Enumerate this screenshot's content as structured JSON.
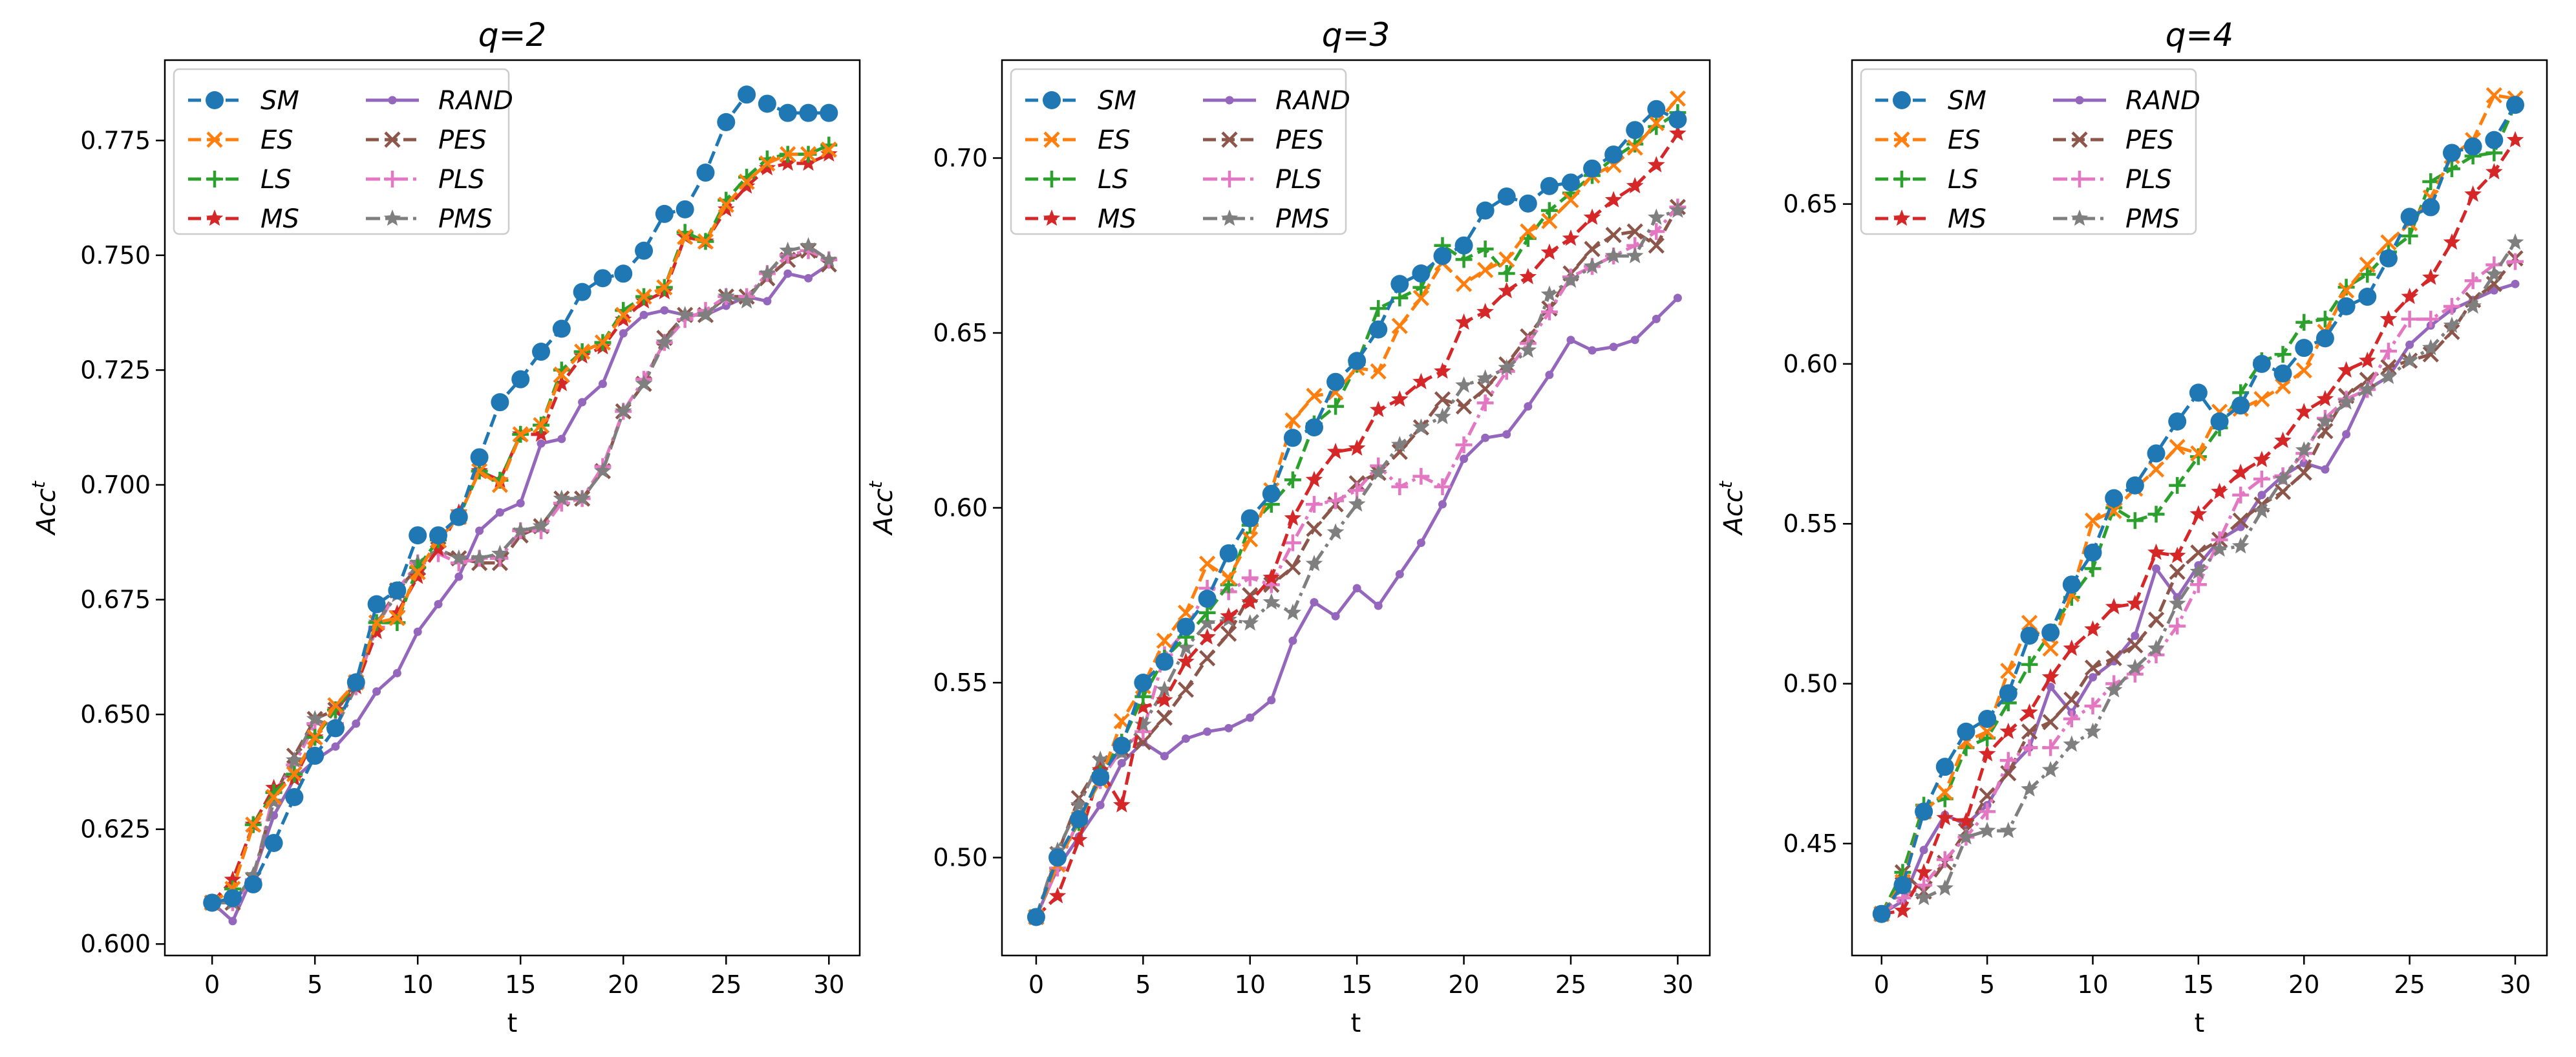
{
  "colors": {
    "SM": "#1f77b4",
    "ES": "#ff7f0e",
    "LS": "#2ca02c",
    "MS": "#d62728",
    "RAND": "#9467bd",
    "PES": "#8c564b",
    "PLS": "#e377c2",
    "PMS": "#7f7f7f"
  },
  "legend_order": [
    "SM",
    "ES",
    "LS",
    "MS",
    "RAND",
    "PES",
    "PLS",
    "PMS"
  ],
  "series_style": {
    "SM": {
      "marker": "circle",
      "dash": "dashed"
    },
    "ES": {
      "marker": "x",
      "dash": "dashed"
    },
    "LS": {
      "marker": "plus",
      "dash": "dashed"
    },
    "MS": {
      "marker": "star",
      "dash": "dashed"
    },
    "RAND": {
      "marker": "dot",
      "dash": "solid"
    },
    "PES": {
      "marker": "x",
      "dash": "dashed"
    },
    "PLS": {
      "marker": "plus",
      "dash": "dashdot"
    },
    "PMS": {
      "marker": "star",
      "dash": "dashdot"
    }
  },
  "chart_data": [
    {
      "type": "line",
      "title": "q=2",
      "xlabel": "t",
      "ylabel": "Acc",
      "ylabel_sup": "t",
      "xlim": [
        -2.3,
        31.5
      ],
      "ylim": [
        0.5975,
        0.7925
      ],
      "xticks": [
        0,
        5,
        10,
        15,
        20,
        25,
        30
      ],
      "yticks": [
        0.6,
        0.625,
        0.65,
        0.675,
        0.7,
        0.725,
        0.75,
        0.775
      ],
      "ytick_labels": [
        "0.600",
        "0.625",
        "0.650",
        "0.675",
        "0.700",
        "0.725",
        "0.750",
        "0.775"
      ],
      "legend_position": "top-left",
      "x": [
        0,
        1,
        2,
        3,
        4,
        5,
        6,
        7,
        8,
        9,
        10,
        11,
        12,
        13,
        14,
        15,
        16,
        17,
        18,
        19,
        20,
        21,
        22,
        23,
        24,
        25,
        26,
        27,
        28,
        29,
        30
      ],
      "series": [
        {
          "name": "SM",
          "values": [
            0.609,
            0.61,
            0.613,
            0.622,
            0.632,
            0.641,
            0.647,
            0.657,
            0.674,
            0.677,
            0.689,
            0.689,
            0.693,
            0.706,
            0.718,
            0.723,
            0.729,
            0.734,
            0.742,
            0.745,
            0.746,
            0.751,
            0.759,
            0.76,
            0.768,
            0.779,
            0.785,
            0.783,
            0.781,
            0.781,
            0.781
          ]
        },
        {
          "name": "ES",
          "values": [
            0.609,
            0.612,
            0.626,
            0.632,
            0.637,
            0.645,
            0.652,
            0.657,
            0.67,
            0.671,
            0.681,
            0.688,
            0.693,
            0.703,
            0.7,
            0.711,
            0.713,
            0.724,
            0.729,
            0.731,
            0.737,
            0.741,
            0.743,
            0.754,
            0.753,
            0.761,
            0.766,
            0.77,
            0.772,
            0.772,
            0.773
          ]
        },
        {
          "name": "LS",
          "values": [
            0.609,
            0.612,
            0.626,
            0.633,
            0.637,
            0.645,
            0.651,
            0.657,
            0.67,
            0.67,
            0.682,
            0.688,
            0.693,
            0.703,
            0.701,
            0.711,
            0.713,
            0.725,
            0.729,
            0.731,
            0.738,
            0.741,
            0.743,
            0.755,
            0.753,
            0.762,
            0.767,
            0.771,
            0.772,
            0.772,
            0.774
          ]
        },
        {
          "name": "MS",
          "values": [
            0.609,
            0.614,
            0.626,
            0.634,
            0.636,
            0.645,
            0.651,
            0.656,
            0.668,
            0.672,
            0.68,
            0.686,
            0.694,
            0.703,
            0.701,
            0.711,
            0.711,
            0.722,
            0.728,
            0.73,
            0.736,
            0.74,
            0.742,
            0.754,
            0.753,
            0.76,
            0.765,
            0.769,
            0.77,
            0.77,
            0.772
          ]
        },
        {
          "name": "RAND",
          "values": [
            0.609,
            0.605,
            0.615,
            0.628,
            0.636,
            0.64,
            0.643,
            0.648,
            0.655,
            0.659,
            0.668,
            0.674,
            0.68,
            0.69,
            0.694,
            0.696,
            0.709,
            0.71,
            0.718,
            0.722,
            0.733,
            0.737,
            0.738,
            0.737,
            0.737,
            0.739,
            0.741,
            0.74,
            0.746,
            0.745,
            0.748
          ]
        },
        {
          "name": "PES",
          "values": [
            0.609,
            0.609,
            0.614,
            0.632,
            0.641,
            0.649,
            0.651,
            0.657,
            0.67,
            0.677,
            0.682,
            0.686,
            0.684,
            0.683,
            0.683,
            0.689,
            0.691,
            0.697,
            0.697,
            0.703,
            0.716,
            0.722,
            0.732,
            0.737,
            0.737,
            0.741,
            0.741,
            0.745,
            0.749,
            0.751,
            0.748
          ]
        },
        {
          "name": "PLS",
          "values": [
            0.609,
            0.609,
            0.614,
            0.633,
            0.639,
            0.648,
            0.648,
            0.656,
            0.669,
            0.677,
            0.683,
            0.685,
            0.683,
            0.684,
            0.684,
            0.69,
            0.69,
            0.696,
            0.697,
            0.704,
            0.716,
            0.723,
            0.731,
            0.736,
            0.738,
            0.741,
            0.741,
            0.746,
            0.75,
            0.751,
            0.749
          ]
        },
        {
          "name": "PMS",
          "values": [
            0.609,
            0.609,
            0.615,
            0.631,
            0.64,
            0.649,
            0.647,
            0.656,
            0.67,
            0.676,
            0.683,
            0.686,
            0.684,
            0.684,
            0.685,
            0.69,
            0.691,
            0.697,
            0.697,
            0.703,
            0.716,
            0.722,
            0.731,
            0.737,
            0.737,
            0.741,
            0.74,
            0.746,
            0.751,
            0.752,
            0.749
          ]
        }
      ]
    },
    {
      "type": "line",
      "title": "q=3",
      "xlabel": "t",
      "ylabel": "Acc",
      "ylabel_sup": "t",
      "xlim": [
        -1.6,
        31.5
      ],
      "ylim": [
        0.472,
        0.728
      ],
      "xticks": [
        0,
        5,
        10,
        15,
        20,
        25,
        30
      ],
      "yticks": [
        0.5,
        0.55,
        0.6,
        0.65,
        0.7
      ],
      "ytick_labels": [
        "0.50",
        "0.55",
        "0.60",
        "0.65",
        "0.70"
      ],
      "legend_position": "top-left",
      "x": [
        0,
        1,
        2,
        3,
        4,
        5,
        6,
        7,
        8,
        9,
        10,
        11,
        12,
        13,
        14,
        15,
        16,
        17,
        18,
        19,
        20,
        21,
        22,
        23,
        24,
        25,
        26,
        27,
        28,
        29,
        30
      ],
      "series": [
        {
          "name": "SM",
          "values": [
            0.483,
            0.5,
            0.511,
            0.523,
            0.532,
            0.55,
            0.556,
            0.566,
            0.574,
            0.587,
            0.597,
            0.604,
            0.62,
            0.623,
            0.636,
            0.642,
            0.651,
            0.664,
            0.667,
            0.672,
            0.675,
            0.685,
            0.689,
            0.687,
            0.692,
            0.693,
            0.697,
            0.701,
            0.708,
            0.714,
            0.711
          ]
        },
        {
          "name": "ES",
          "values": [
            0.483,
            0.498,
            0.511,
            0.522,
            0.539,
            0.549,
            0.562,
            0.57,
            0.584,
            0.58,
            0.591,
            0.605,
            0.625,
            0.632,
            0.633,
            0.64,
            0.639,
            0.652,
            0.66,
            0.67,
            0.664,
            0.668,
            0.671,
            0.679,
            0.682,
            0.688,
            0.695,
            0.698,
            0.703,
            0.71,
            0.717
          ]
        },
        {
          "name": "LS",
          "values": [
            0.483,
            0.5,
            0.51,
            0.524,
            0.533,
            0.546,
            0.557,
            0.563,
            0.57,
            0.578,
            0.595,
            0.601,
            0.608,
            0.624,
            0.629,
            0.641,
            0.657,
            0.66,
            0.663,
            0.675,
            0.671,
            0.674,
            0.667,
            0.677,
            0.685,
            0.69,
            0.695,
            0.7,
            0.704,
            0.709,
            0.713
          ]
        },
        {
          "name": "MS",
          "values": [
            0.483,
            0.489,
            0.505,
            0.525,
            0.515,
            0.543,
            0.545,
            0.556,
            0.563,
            0.569,
            0.573,
            0.58,
            0.597,
            0.608,
            0.616,
            0.617,
            0.628,
            0.631,
            0.636,
            0.639,
            0.653,
            0.656,
            0.662,
            0.666,
            0.673,
            0.677,
            0.683,
            0.688,
            0.692,
            0.698,
            0.707
          ]
        },
        {
          "name": "RAND",
          "values": [
            0.483,
            0.497,
            0.506,
            0.515,
            0.527,
            0.533,
            0.529,
            0.534,
            0.536,
            0.537,
            0.54,
            0.545,
            0.562,
            0.573,
            0.569,
            0.577,
            0.572,
            0.581,
            0.59,
            0.601,
            0.614,
            0.62,
            0.621,
            0.629,
            0.638,
            0.648,
            0.645,
            0.646,
            0.648,
            0.654,
            0.66
          ]
        },
        {
          "name": "PES",
          "values": [
            0.483,
            0.501,
            0.517,
            0.527,
            0.531,
            0.533,
            0.54,
            0.548,
            0.557,
            0.564,
            0.575,
            0.578,
            0.583,
            0.594,
            0.601,
            0.607,
            0.61,
            0.616,
            0.623,
            0.631,
            0.629,
            0.634,
            0.641,
            0.649,
            0.657,
            0.667,
            0.674,
            0.678,
            0.679,
            0.675,
            0.686
          ]
        },
        {
          "name": "PLS",
          "values": [
            0.483,
            0.497,
            0.511,
            0.522,
            0.531,
            0.536,
            0.558,
            0.565,
            0.577,
            0.576,
            0.58,
            0.578,
            0.59,
            0.601,
            0.602,
            0.605,
            0.612,
            0.606,
            0.609,
            0.606,
            0.618,
            0.63,
            0.639,
            0.647,
            0.656,
            0.666,
            0.669,
            0.672,
            0.675,
            0.679,
            0.686
          ]
        },
        {
          "name": "PMS",
          "values": [
            0.483,
            0.502,
            0.515,
            0.528,
            0.53,
            0.538,
            0.548,
            0.56,
            0.567,
            0.568,
            0.567,
            0.573,
            0.57,
            0.584,
            0.593,
            0.601,
            0.61,
            0.618,
            0.623,
            0.626,
            0.635,
            0.637,
            0.64,
            0.645,
            0.661,
            0.665,
            0.669,
            0.672,
            0.672,
            0.683,
            0.685
          ]
        }
      ]
    },
    {
      "type": "line",
      "title": "q=4",
      "xlabel": "t",
      "ylabel": "Acc",
      "ylabel_sup": "t",
      "xlim": [
        -1.4,
        31.5
      ],
      "ylim": [
        0.415,
        0.695
      ],
      "xticks": [
        0,
        5,
        10,
        15,
        20,
        25,
        30
      ],
      "yticks": [
        0.45,
        0.5,
        0.55,
        0.6,
        0.65
      ],
      "ytick_labels": [
        "0.45",
        "0.50",
        "0.55",
        "0.60",
        "0.65"
      ],
      "legend_position": "top-left",
      "x": [
        0,
        1,
        2,
        3,
        4,
        5,
        6,
        7,
        8,
        9,
        10,
        11,
        12,
        13,
        14,
        15,
        16,
        17,
        18,
        19,
        20,
        21,
        22,
        23,
        24,
        25,
        26,
        27,
        28,
        29,
        30
      ],
      "series": [
        {
          "name": "SM",
          "values": [
            0.428,
            0.437,
            0.46,
            0.474,
            0.485,
            0.489,
            0.497,
            0.515,
            0.516,
            0.531,
            0.541,
            0.558,
            0.562,
            0.572,
            0.582,
            0.591,
            0.582,
            0.587,
            0.6,
            0.597,
            0.605,
            0.608,
            0.618,
            0.621,
            0.633,
            0.646,
            0.649,
            0.666,
            0.668,
            0.67,
            0.681
          ]
        },
        {
          "name": "ES",
          "values": [
            0.428,
            0.438,
            0.46,
            0.466,
            0.482,
            0.485,
            0.504,
            0.519,
            0.511,
            0.528,
            0.551,
            0.554,
            0.561,
            0.567,
            0.574,
            0.572,
            0.585,
            0.586,
            0.589,
            0.593,
            0.598,
            0.61,
            0.623,
            0.631,
            0.638,
            0.644,
            0.652,
            0.665,
            0.67,
            0.684,
            0.683
          ]
        },
        {
          "name": "LS",
          "values": [
            0.428,
            0.441,
            0.462,
            0.464,
            0.48,
            0.483,
            0.494,
            0.506,
            0.516,
            0.527,
            0.536,
            0.555,
            0.551,
            0.553,
            0.562,
            0.571,
            0.58,
            0.591,
            0.601,
            0.603,
            0.613,
            0.614,
            0.624,
            0.628,
            0.635,
            0.64,
            0.657,
            0.661,
            0.665,
            0.666,
            0.681
          ]
        },
        {
          "name": "MS",
          "values": [
            0.428,
            0.429,
            0.441,
            0.458,
            0.457,
            0.478,
            0.485,
            0.491,
            0.502,
            0.511,
            0.517,
            0.524,
            0.525,
            0.541,
            0.54,
            0.553,
            0.56,
            0.566,
            0.57,
            0.576,
            0.585,
            0.589,
            0.598,
            0.601,
            0.614,
            0.621,
            0.627,
            0.638,
            0.653,
            0.66,
            0.67
          ]
        },
        {
          "name": "RAND",
          "values": [
            0.428,
            0.432,
            0.448,
            0.459,
            0.456,
            0.462,
            0.473,
            0.48,
            0.499,
            0.491,
            0.502,
            0.507,
            0.515,
            0.536,
            0.527,
            0.537,
            0.545,
            0.549,
            0.559,
            0.565,
            0.569,
            0.567,
            0.578,
            0.592,
            0.596,
            0.606,
            0.612,
            0.617,
            0.62,
            0.623,
            0.625
          ]
        },
        {
          "name": "PES",
          "values": [
            0.428,
            0.441,
            0.435,
            0.444,
            0.454,
            0.465,
            0.472,
            0.485,
            0.488,
            0.495,
            0.505,
            0.508,
            0.512,
            0.52,
            0.535,
            0.541,
            0.545,
            0.551,
            0.556,
            0.56,
            0.566,
            0.579,
            0.59,
            0.595,
            0.599,
            0.601,
            0.603,
            0.61,
            0.62,
            0.625,
            0.633
          ]
        },
        {
          "name": "PLS",
          "values": [
            0.428,
            0.433,
            0.437,
            0.445,
            0.452,
            0.46,
            0.476,
            0.48,
            0.48,
            0.489,
            0.493,
            0.5,
            0.503,
            0.509,
            0.518,
            0.531,
            0.545,
            0.559,
            0.564,
            0.565,
            0.572,
            0.583,
            0.589,
            0.592,
            0.604,
            0.614,
            0.614,
            0.618,
            0.626,
            0.631,
            0.632
          ]
        },
        {
          "name": "PMS",
          "values": [
            0.428,
            0.436,
            0.433,
            0.436,
            0.452,
            0.454,
            0.454,
            0.467,
            0.473,
            0.481,
            0.485,
            0.498,
            0.505,
            0.511,
            0.525,
            0.535,
            0.542,
            0.543,
            0.554,
            0.564,
            0.573,
            0.582,
            0.588,
            0.592,
            0.596,
            0.601,
            0.605,
            0.612,
            0.618,
            0.628,
            0.638
          ]
        }
      ]
    }
  ]
}
